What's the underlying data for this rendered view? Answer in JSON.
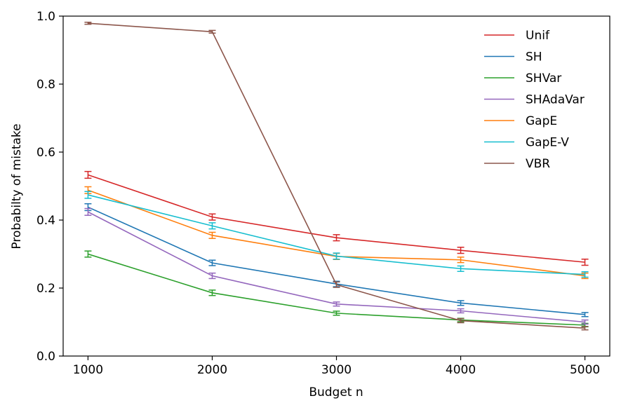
{
  "chart_data": {
    "type": "line",
    "title": "",
    "xlabel": "Budget n",
    "ylabel": "Probabilty of mistake",
    "x": [
      1000,
      2000,
      3000,
      4000,
      5000
    ],
    "xlim": [
      800,
      5200
    ],
    "ylim": [
      0,
      1
    ],
    "xticks": [
      1000,
      2000,
      3000,
      4000,
      5000
    ],
    "yticks": [
      0.0,
      0.2,
      0.4,
      0.6,
      0.8,
      1.0
    ],
    "xtick_labels": [
      "1000",
      "2000",
      "3000",
      "4000",
      "5000"
    ],
    "ytick_labels": [
      "0.0",
      "0.2",
      "0.4",
      "0.6",
      "0.8",
      "1.0"
    ],
    "grid": false,
    "legend_position": "top-right",
    "error_bars": true,
    "series": [
      {
        "name": "Unif",
        "color": "#d62728",
        "values": [
          0.533,
          0.409,
          0.348,
          0.311,
          0.276
        ],
        "errors": [
          0.01,
          0.009,
          0.009,
          0.009,
          0.009
        ]
      },
      {
        "name": "SH",
        "color": "#1f77b4",
        "values": [
          0.438,
          0.274,
          0.212,
          0.156,
          0.122
        ],
        "errors": [
          0.01,
          0.008,
          0.008,
          0.007,
          0.006
        ]
      },
      {
        "name": "SHVar",
        "color": "#2ca02c",
        "values": [
          0.3,
          0.186,
          0.126,
          0.106,
          0.091
        ],
        "errors": [
          0.009,
          0.008,
          0.006,
          0.005,
          0.005
        ]
      },
      {
        "name": "SHAdaVar",
        "color": "#9467bd",
        "values": [
          0.424,
          0.236,
          0.153,
          0.133,
          0.1
        ],
        "errors": [
          0.01,
          0.008,
          0.006,
          0.006,
          0.006
        ]
      },
      {
        "name": "GapE",
        "color": "#ff7f0e",
        "values": [
          0.488,
          0.355,
          0.293,
          0.283,
          0.236
        ],
        "errors": [
          0.01,
          0.009,
          0.009,
          0.008,
          0.008
        ]
      },
      {
        "name": "GapE-V",
        "color": "#17becf",
        "values": [
          0.474,
          0.383,
          0.294,
          0.257,
          0.24
        ],
        "errors": [
          0.01,
          0.009,
          0.009,
          0.008,
          0.008
        ]
      },
      {
        "name": "VBR",
        "color": "#8c564b",
        "values": [
          0.979,
          0.954,
          0.21,
          0.104,
          0.082
        ],
        "errors": [
          0.003,
          0.004,
          0.008,
          0.006,
          0.005
        ]
      }
    ]
  }
}
